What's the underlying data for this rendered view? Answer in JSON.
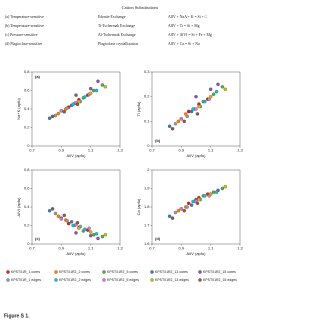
{
  "table": {
    "title": "Cation Substitutions",
    "rows": [
      [
        "(a) Temperature-sensitive",
        "Edenite Exchange",
        "AlIV + NaA + K = Si + □"
      ],
      [
        "(b) Temperature-sensitive",
        "Ti-Tschermak Exchange",
        "AlIV + Ti = Si + Mg"
      ],
      [
        "(c) Pressure-sensitive",
        "Al-Tschermak Exchange",
        "AlIV + AlVI = Si + Fe + Mg"
      ],
      [
        "(d) Plagioclase-sensitive",
        "Plagioclase crystallization",
        "AlIV + Ca = Si + Na"
      ]
    ]
  },
  "chart_data": [
    {
      "type": "scatter",
      "label": "(a)",
      "ylabel": "Na+K (apfu)",
      "xlabel": "AlIV (apfu)",
      "xlim": [
        0.7,
        1.3
      ],
      "xticks": [
        0.7,
        0.9,
        1.1,
        1.3
      ],
      "ylim": [
        0,
        0.8
      ],
      "yticks": [
        0,
        0.2,
        0.4,
        0.6,
        0.8
      ],
      "series": [
        {
          "name": "KPST01R_1 cores",
          "color": "#e41a1c",
          "x": [
            0.95,
            1.02,
            1.08
          ],
          "values": [
            0.42,
            0.5,
            0.55
          ]
        },
        {
          "name": "KPST01R2_2 cores",
          "color": "#ff7f00",
          "x": [
            0.88,
            0.93,
            0.99
          ],
          "values": [
            0.35,
            0.4,
            0.46
          ]
        },
        {
          "name": "KPST01R2_5 cores",
          "color": "#4daf4a",
          "x": [
            1.05,
            1.12,
            1.18
          ],
          "values": [
            0.52,
            0.6,
            0.66
          ]
        },
        {
          "name": "KPST01R2_13 cores",
          "color": "#377eb8",
          "x": [
            0.82,
            0.9,
            0.97
          ],
          "values": [
            0.3,
            0.38,
            0.44
          ]
        },
        {
          "name": "KPST01R2_15 cores",
          "color": "#984ea3",
          "x": [
            1.0,
            1.1,
            1.15
          ],
          "values": [
            0.55,
            0.62,
            0.7
          ]
        },
        {
          "name": "KPST01R_1 edges",
          "color": "#999999",
          "x": [
            0.86,
            0.94,
            1.03
          ],
          "values": [
            0.33,
            0.41,
            0.48
          ]
        },
        {
          "name": "KPST01R2_2 edges",
          "color": "#17becf",
          "x": [
            0.98,
            1.06,
            1.14
          ],
          "values": [
            0.45,
            0.53,
            0.6
          ]
        },
        {
          "name": "KPST01R2_5 edges",
          "color": "#e377c2",
          "x": [
            0.9,
            1.0,
            1.09
          ],
          "values": [
            0.38,
            0.47,
            0.56
          ]
        },
        {
          "name": "KPST01R2_13 edges",
          "color": "#bcbd22",
          "x": [
            1.02,
            1.1,
            1.2
          ],
          "values": [
            0.48,
            0.57,
            0.64
          ]
        },
        {
          "name": "KPST01R2_15 edges",
          "color": "#8c564b",
          "x": [
            0.84,
            0.92,
            1.01
          ],
          "values": [
            0.32,
            0.37,
            0.45
          ]
        }
      ]
    },
    {
      "type": "scatter",
      "label": "(b)",
      "ylabel": "Ti (apfu)",
      "xlabel": "AlIV (apfu)",
      "xlim": [
        0.7,
        1.3
      ],
      "xticks": [
        0.7,
        0.9,
        1.1,
        1.3
      ],
      "ylim": [
        0,
        0.3
      ],
      "yticks": [
        0,
        0.1,
        0.2,
        0.3
      ],
      "series": [
        {
          "color": "#e41a1c",
          "x": [
            0.95,
            1.02,
            1.08
          ],
          "values": [
            0.14,
            0.17,
            0.19
          ]
        },
        {
          "color": "#ff7f00",
          "x": [
            0.88,
            0.93,
            0.99
          ],
          "values": [
            0.1,
            0.13,
            0.15
          ]
        },
        {
          "color": "#4daf4a",
          "x": [
            1.05,
            1.12,
            1.18
          ],
          "values": [
            0.18,
            0.21,
            0.24
          ]
        },
        {
          "color": "#377eb8",
          "x": [
            0.82,
            0.9,
            0.97
          ],
          "values": [
            0.08,
            0.11,
            0.14
          ]
        },
        {
          "color": "#984ea3",
          "x": [
            1.0,
            1.1,
            1.15
          ],
          "values": [
            0.2,
            0.23,
            0.25
          ]
        },
        {
          "color": "#999999",
          "x": [
            0.86,
            0.94,
            1.03
          ],
          "values": [
            0.09,
            0.12,
            0.16
          ]
        },
        {
          "color": "#17becf",
          "x": [
            0.98,
            1.06,
            1.14
          ],
          "values": [
            0.15,
            0.18,
            0.22
          ]
        },
        {
          "color": "#e377c2",
          "x": [
            0.9,
            1.0,
            1.09
          ],
          "values": [
            0.11,
            0.15,
            0.19
          ]
        },
        {
          "color": "#bcbd22",
          "x": [
            1.02,
            1.1,
            1.2
          ],
          "values": [
            0.16,
            0.2,
            0.23
          ]
        },
        {
          "color": "#8c564b",
          "x": [
            0.84,
            0.92,
            1.01
          ],
          "values": [
            0.07,
            0.1,
            0.13
          ]
        }
      ]
    },
    {
      "type": "scatter",
      "label": "(c)",
      "ylabel": "AlVI (apfu)",
      "xlabel": "AlIV (apfu)",
      "xlim": [
        0.7,
        1.3
      ],
      "xticks": [
        0.7,
        0.9,
        1.1,
        1.3
      ],
      "ylim": [
        0,
        0.8
      ],
      "yticks": [
        0,
        0.2,
        0.4,
        0.6,
        0.8
      ],
      "series": [
        {
          "color": "#e41a1c",
          "x": [
            0.95,
            1.02,
            1.08
          ],
          "values": [
            0.22,
            0.18,
            0.15
          ]
        },
        {
          "color": "#ff7f00",
          "x": [
            0.88,
            0.93,
            0.99
          ],
          "values": [
            0.3,
            0.26,
            0.2
          ]
        },
        {
          "color": "#4daf4a",
          "x": [
            1.05,
            1.12,
            1.18
          ],
          "values": [
            0.14,
            0.1,
            0.08
          ]
        },
        {
          "color": "#377eb8",
          "x": [
            0.82,
            0.9,
            0.97
          ],
          "values": [
            0.36,
            0.28,
            0.24
          ]
        },
        {
          "color": "#984ea3",
          "x": [
            1.0,
            1.1,
            1.15
          ],
          "values": [
            0.12,
            0.09,
            0.06
          ]
        },
        {
          "color": "#999999",
          "x": [
            0.86,
            0.94,
            1.03
          ],
          "values": [
            0.33,
            0.25,
            0.19
          ]
        },
        {
          "color": "#17becf",
          "x": [
            0.98,
            1.06,
            1.14
          ],
          "values": [
            0.2,
            0.16,
            0.11
          ]
        },
        {
          "color": "#e377c2",
          "x": [
            0.9,
            1.0,
            1.09
          ],
          "values": [
            0.27,
            0.21,
            0.17
          ]
        },
        {
          "color": "#bcbd22",
          "x": [
            1.02,
            1.1,
            1.2
          ],
          "values": [
            0.17,
            0.13,
            0.1
          ]
        },
        {
          "color": "#8c564b",
          "x": [
            0.84,
            0.92,
            1.01
          ],
          "values": [
            0.38,
            0.31,
            0.23
          ]
        }
      ]
    },
    {
      "type": "scatter",
      "label": "(d)",
      "ylabel": "Ca (apfu)",
      "xlabel": "AlIV (apfu)",
      "xlim": [
        0.7,
        1.3
      ],
      "xticks": [
        0.7,
        0.9,
        1.1,
        1.3
      ],
      "ylim": [
        1.6,
        2.0
      ],
      "yticks": [
        1.6,
        1.7,
        1.8,
        1.9,
        2.0
      ],
      "series": [
        {
          "color": "#e41a1c",
          "x": [
            0.95,
            1.02,
            1.08
          ],
          "values": [
            1.82,
            1.85,
            1.87
          ]
        },
        {
          "color": "#ff7f00",
          "x": [
            0.88,
            0.93,
            0.99
          ],
          "values": [
            1.78,
            1.8,
            1.83
          ]
        },
        {
          "color": "#4daf4a",
          "x": [
            1.05,
            1.12,
            1.18
          ],
          "values": [
            1.86,
            1.88,
            1.9
          ]
        },
        {
          "color": "#377eb8",
          "x": [
            0.82,
            0.9,
            0.97
          ],
          "values": [
            1.75,
            1.79,
            1.81
          ]
        },
        {
          "color": "#984ea3",
          "x": [
            1.0,
            1.1,
            1.15
          ],
          "values": [
            1.84,
            1.87,
            1.89
          ]
        },
        {
          "color": "#999999",
          "x": [
            0.86,
            0.94,
            1.03
          ],
          "values": [
            1.77,
            1.8,
            1.84
          ]
        },
        {
          "color": "#17becf",
          "x": [
            0.98,
            1.06,
            1.14
          ],
          "values": [
            1.83,
            1.86,
            1.88
          ]
        },
        {
          "color": "#e377c2",
          "x": [
            0.9,
            1.0,
            1.09
          ],
          "values": [
            1.79,
            1.83,
            1.86
          ]
        },
        {
          "color": "#bcbd22",
          "x": [
            1.02,
            1.1,
            1.2
          ],
          "values": [
            1.84,
            1.87,
            1.91
          ]
        },
        {
          "color": "#8c564b",
          "x": [
            0.84,
            0.92,
            1.01
          ],
          "values": [
            1.74,
            1.78,
            1.82
          ]
        }
      ]
    }
  ],
  "caption": "Figure S 1."
}
